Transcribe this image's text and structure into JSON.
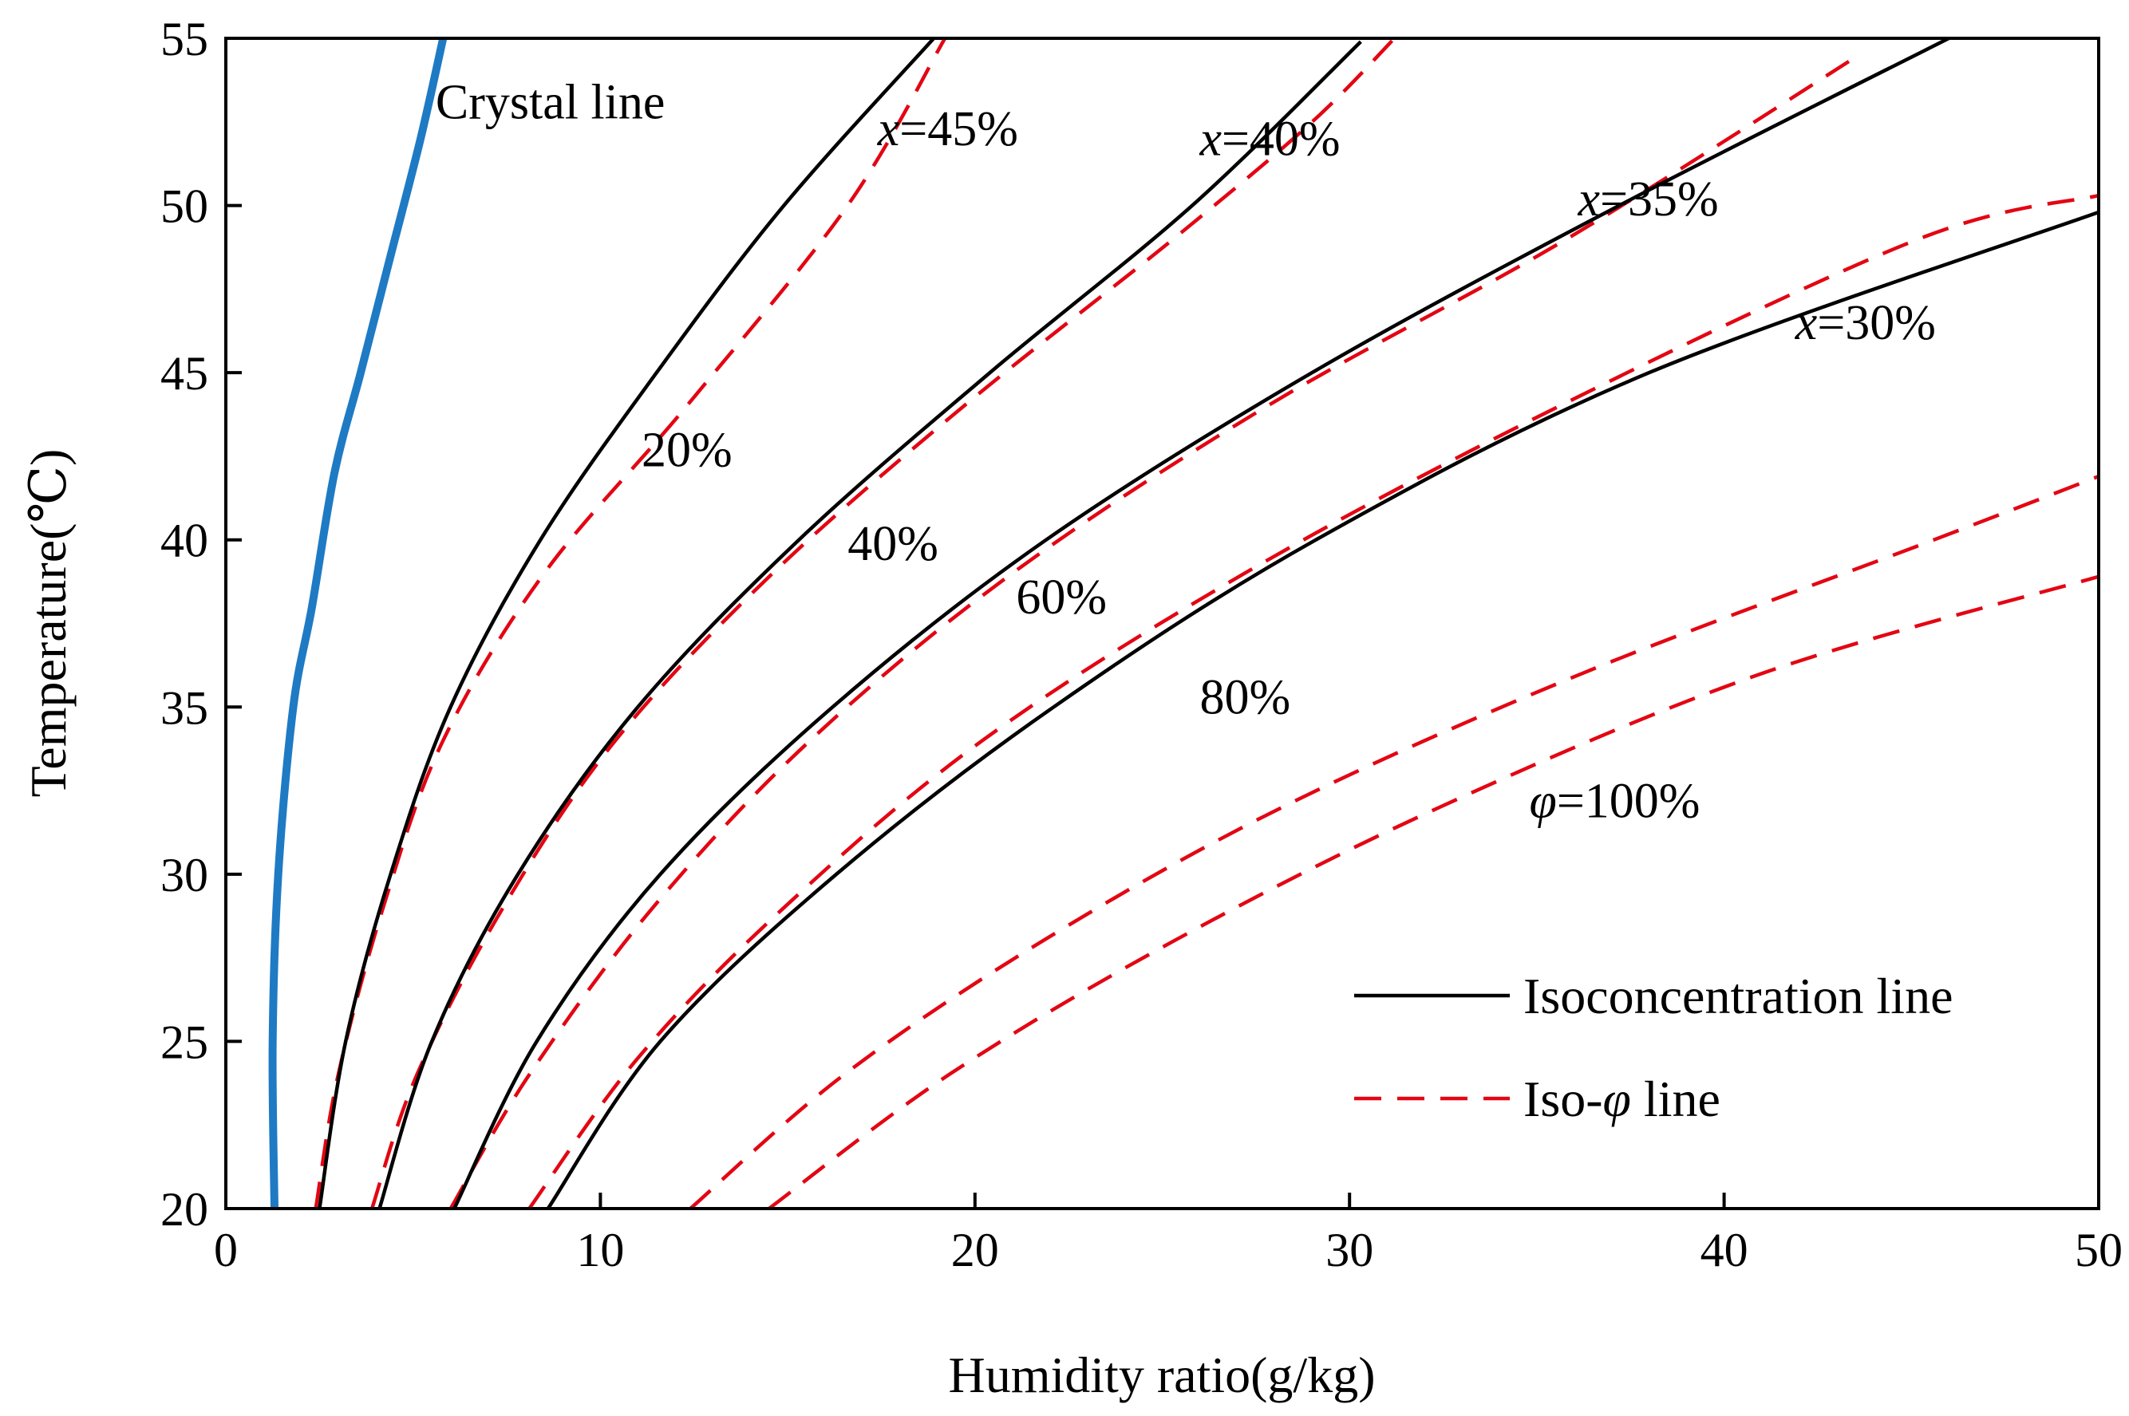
{
  "colors": {
    "iso_concentration": "#000000",
    "iso_phi": "#e30613",
    "crystal": "#1f7ac4",
    "axis": "#000000",
    "background": "#ffffff"
  },
  "chart_data": {
    "type": "line",
    "xlabel": "Humidity ratio(g/kg)",
    "ylabel": "Temperature(℃)",
    "xlim": [
      0,
      50
    ],
    "ylim": [
      20,
      55
    ],
    "x_ticks": [
      "0",
      "10",
      "20",
      "30",
      "40",
      "50"
    ],
    "y_ticks": [
      "20",
      "25",
      "30",
      "35",
      "40",
      "45",
      "50",
      "55"
    ],
    "grid": false,
    "legend_position": "bottom-right",
    "legend": [
      {
        "label": "Isoconcentration line",
        "style": "solid"
      },
      {
        "label_prefix": "Iso-",
        "label_symbol": "φ",
        "label_suffix": " line",
        "style": "dashed"
      }
    ],
    "crystal_line": {
      "label": "Crystal line",
      "x": [
        1.3,
        1.25,
        1.4,
        1.8,
        2.3,
        2.9,
        3.6,
        4.4,
        5.2,
        5.8
      ],
      "y": [
        20,
        25,
        30,
        35,
        38,
        42,
        45,
        48.5,
        52,
        55
      ]
    },
    "iso_concentration": [
      {
        "label_var": "x",
        "label_value": "=45%",
        "x": [
          2.5,
          3.2,
          4.4,
          6.0,
          8.4,
          11.5,
          14.9,
          18.9
        ],
        "y": [
          20,
          25,
          30,
          35,
          40,
          45,
          50,
          55
        ]
      },
      {
        "label_var": "x",
        "label_value": "=40%",
        "x": [
          4.1,
          5.5,
          7.8,
          11.0,
          15.3,
          20.4,
          25.8,
          30.3
        ],
        "y": [
          20,
          25,
          30,
          35,
          40,
          45,
          50,
          54.9
        ]
      },
      {
        "label_var": "x",
        "label_value": "=35%",
        "x": [
          6.1,
          8.3,
          11.6,
          16.2,
          21.9,
          29.0,
          37.2,
          46.0
        ],
        "y": [
          20,
          25,
          30,
          35,
          40,
          45,
          50,
          55
        ]
      },
      {
        "label_var": "x",
        "label_value": "=30%",
        "x": [
          8.6,
          11.6,
          16.3,
          22.1,
          29.1,
          38.0,
          50.0
        ],
        "y": [
          20,
          25,
          30,
          35,
          40,
          45,
          49.8
        ]
      }
    ],
    "iso_phi": [
      {
        "label": "20%",
        "x": [
          2.4,
          3.0,
          4.2,
          5.8,
          8.5,
          12.3,
          16.6,
          19.2
        ],
        "y": [
          20,
          24,
          29,
          34,
          39,
          44,
          50,
          55
        ]
      },
      {
        "label": "40%",
        "x": [
          3.9,
          5.1,
          7.4,
          10.4,
          14.6,
          19.7,
          25.3,
          29.0,
          31.2
        ],
        "y": [
          20,
          24,
          29,
          34,
          39,
          44,
          49,
          52.5,
          55
        ]
      },
      {
        "label": "60%",
        "x": [
          6.0,
          8.1,
          11.4,
          15.6,
          21.0,
          27.8,
          35.8,
          43.6
        ],
        "y": [
          20,
          24,
          29,
          34,
          39,
          44,
          49,
          54.5
        ]
      },
      {
        "label": "80%",
        "x": [
          8.1,
          11.0,
          14.9,
          20.2,
          27.2,
          35.6,
          45.2,
          50.0
        ],
        "y": [
          20,
          24.5,
          29,
          34,
          39,
          44,
          49,
          50.3
        ]
      },
      {
        "label_var": "φ",
        "label_value": "=100%",
        "x": [
          12.4,
          16.5,
          21.8,
          28.2,
          36.2,
          45.6,
          50.0
        ],
        "y": [
          20,
          24,
          28,
          32,
          36,
          40,
          41.9
        ]
      },
      {
        "label": "",
        "x": [
          14.5,
          19.3,
          25.3,
          32.4,
          41.0,
          50.0
        ],
        "y": [
          20,
          24,
          28,
          32,
          36,
          38.9
        ]
      }
    ],
    "annotations": [
      {
        "text": "Crystal line",
        "x": 5.6,
        "y": 52.6
      },
      {
        "text_var": "x",
        "text_value": "=45%",
        "x": 17.4,
        "y": 51.8
      },
      {
        "text_var": "x",
        "text_value": "=40%",
        "x": 26.0,
        "y": 51.5
      },
      {
        "text_var": "x",
        "text_value": "=35%",
        "x": 36.1,
        "y": 49.7
      },
      {
        "text_var": "x",
        "text_value": "=30%",
        "x": 41.9,
        "y": 46.0
      },
      {
        "text": "20%",
        "x": 11.1,
        "y": 42.2
      },
      {
        "text": "40%",
        "x": 16.6,
        "y": 39.4
      },
      {
        "text": "60%",
        "x": 21.1,
        "y": 37.8
      },
      {
        "text": "80%",
        "x": 26.0,
        "y": 34.8
      },
      {
        "text_var": "φ",
        "text_value": "=100%",
        "x": 34.8,
        "y": 31.7
      }
    ]
  }
}
